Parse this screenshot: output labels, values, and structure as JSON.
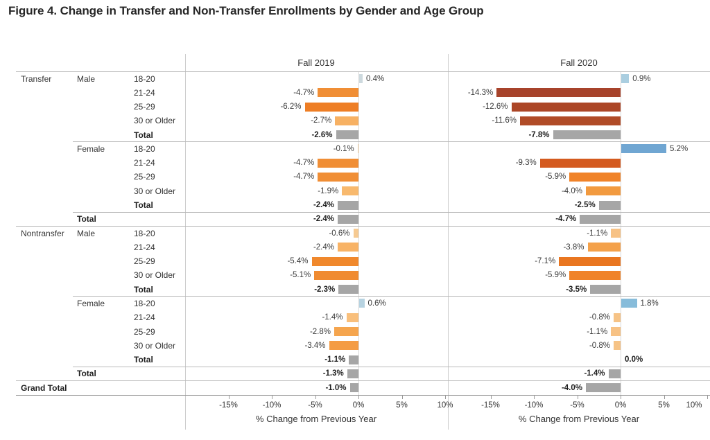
{
  "title": "Figure 4. Change in Transfer and Non-Transfer Enrollments by Gender and Age Group",
  "chart_data": {
    "type": "bar",
    "orientation": "horizontal",
    "panels": [
      "Fall 2019",
      "Fall 2020"
    ],
    "xlabel": "% Change from Previous Year",
    "x_ticks": [
      "-15%",
      "-10%",
      "-5%",
      "0%",
      "5%",
      "10%"
    ],
    "x_tick_values": [
      -15,
      -10,
      -5,
      0,
      5,
      10
    ],
    "xlim": [
      -20,
      10.2
    ],
    "legend": "none",
    "grid": "zero-line-only",
    "total_bar_color": "#a6a6a6",
    "rows": [
      {
        "group": "Transfer",
        "gender": "Male",
        "age": "18-20",
        "values": [
          0.4,
          0.9
        ],
        "labels": [
          "0.4%",
          "0.9%"
        ],
        "colors": [
          "#cdd9de",
          "#aacee0"
        ]
      },
      {
        "age": "21-24",
        "values": [
          -4.7,
          -14.3
        ],
        "labels": [
          "-4.7%",
          "-14.3%"
        ],
        "colors": [
          "#f08e35",
          "#a7432b"
        ]
      },
      {
        "age": "25-29",
        "values": [
          -6.2,
          -12.6
        ],
        "labels": [
          "-6.2%",
          "-12.6%"
        ],
        "colors": [
          "#ee7e25",
          "#ac4627"
        ]
      },
      {
        "age": "30 or Older",
        "values": [
          -2.7,
          -11.6
        ],
        "labels": [
          "-2.7%",
          "-11.6%"
        ],
        "colors": [
          "#f7b163",
          "#b04b27"
        ]
      },
      {
        "age": "Total",
        "bold": true,
        "values": [
          -2.6,
          -7.8
        ],
        "labels": [
          "-2.6%",
          "-7.8%"
        ],
        "colors": [
          "#a6a6a6",
          "#a6a6a6"
        ]
      },
      {
        "gender": "Female",
        "age": "18-20",
        "sep": "gender",
        "values": [
          -0.1,
          5.2
        ],
        "labels": [
          "-0.1%",
          "5.2%"
        ],
        "colors": [
          "#fad7a8",
          "#70a6d2"
        ]
      },
      {
        "age": "21-24",
        "values": [
          -4.7,
          -9.3
        ],
        "labels": [
          "-4.7%",
          "-9.3%"
        ],
        "colors": [
          "#f08e35",
          "#d45a1f"
        ]
      },
      {
        "age": "25-29",
        "values": [
          -4.7,
          -5.9
        ],
        "labels": [
          "-4.7%",
          "-5.9%"
        ],
        "colors": [
          "#f08e35",
          "#f08329"
        ]
      },
      {
        "age": "30 or Older",
        "values": [
          -1.9,
          -4.0
        ],
        "labels": [
          "-1.9%",
          "-4.0%"
        ],
        "colors": [
          "#f8b96e",
          "#f29a3f"
        ]
      },
      {
        "age": "Total",
        "bold": true,
        "values": [
          -2.4,
          -2.5
        ],
        "labels": [
          "-2.4%",
          "-2.5%"
        ],
        "colors": [
          "#a6a6a6",
          "#a6a6a6"
        ]
      },
      {
        "gender": "Total",
        "bold": true,
        "sep": "gender",
        "values": [
          -2.4,
          -4.7
        ],
        "labels": [
          "-2.4%",
          "-4.7%"
        ],
        "colors": [
          "#a6a6a6",
          "#a6a6a6"
        ]
      },
      {
        "group": "Nontransfer",
        "gender": "Male",
        "age": "18-20",
        "sep": "group",
        "values": [
          -0.6,
          -1.1
        ],
        "labels": [
          "-0.6%",
          "-1.1%"
        ],
        "colors": [
          "#f6ca92",
          "#f7c285"
        ]
      },
      {
        "age": "21-24",
        "values": [
          -2.4,
          -3.8
        ],
        "labels": [
          "-2.4%",
          "-3.8%"
        ],
        "colors": [
          "#f8b366",
          "#f4a14a"
        ]
      },
      {
        "age": "25-29",
        "values": [
          -5.4,
          -7.1
        ],
        "labels": [
          "-5.4%",
          "-7.1%"
        ],
        "colors": [
          "#f0882c",
          "#e97620"
        ]
      },
      {
        "age": "30 or Older",
        "values": [
          -5.1,
          -5.9
        ],
        "labels": [
          "-5.1%",
          "-5.9%"
        ],
        "colors": [
          "#f08b31",
          "#f08329"
        ]
      },
      {
        "age": "Total",
        "bold": true,
        "values": [
          -2.3,
          -3.5
        ],
        "labels": [
          "-2.3%",
          "-3.5%"
        ],
        "colors": [
          "#a6a6a6",
          "#a6a6a6"
        ]
      },
      {
        "gender": "Female",
        "age": "18-20",
        "sep": "gender",
        "values": [
          0.6,
          1.8
        ],
        "labels": [
          "0.6%",
          "1.8%"
        ],
        "colors": [
          "#b7d3e1",
          "#87bcda"
        ]
      },
      {
        "age": "21-24",
        "values": [
          -1.4,
          -0.8
        ],
        "labels": [
          "-1.4%",
          "-0.8%"
        ],
        "colors": [
          "#f9bf7b",
          "#f6c386"
        ]
      },
      {
        "age": "25-29",
        "values": [
          -2.8,
          -1.1
        ],
        "labels": [
          "-2.8%",
          "-1.1%"
        ],
        "colors": [
          "#f5a54e",
          "#f7c285"
        ]
      },
      {
        "age": "30 or Older",
        "values": [
          -3.4,
          -0.8
        ],
        "labels": [
          "-3.4%",
          "-0.8%"
        ],
        "colors": [
          "#f49c44",
          "#f6c386"
        ]
      },
      {
        "age": "Total",
        "bold": true,
        "values": [
          -1.1,
          0.0
        ],
        "labels": [
          "-1.1%",
          "0.0%"
        ],
        "colors": [
          "#a6a6a6",
          null
        ]
      },
      {
        "gender": "Total",
        "bold": true,
        "sep": "gender",
        "values": [
          -1.3,
          -1.4
        ],
        "labels": [
          "-1.3%",
          "-1.4%"
        ],
        "colors": [
          "#a6a6a6",
          "#a6a6a6"
        ]
      },
      {
        "group": "Grand Total",
        "bold": true,
        "sep": "group",
        "values": [
          -1.0,
          -4.0
        ],
        "labels": [
          "-1.0%",
          "-4.0%"
        ],
        "colors": [
          "#a6a6a6",
          "#a6a6a6"
        ]
      }
    ]
  }
}
